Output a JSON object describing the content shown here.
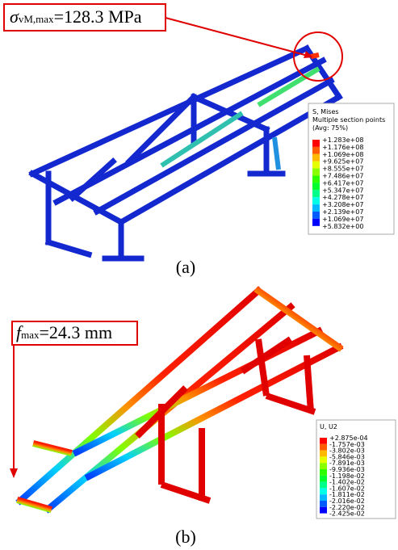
{
  "panel_a": {
    "annotation": {
      "symbol": "σ",
      "subscript": "vM,max",
      "text": "=128.3 MPa"
    },
    "legend": {
      "title_lines": [
        "S, Mises",
        "Multiple section points",
        "(Avg: 75%)"
      ],
      "labels": [
        "+1.283e+08",
        "+1.176e+08",
        "+1.069e+08",
        "+9.625e+07",
        "+8.555e+07",
        "+7.486e+07",
        "+6.417e+07",
        "+5.347e+07",
        "+4.278e+07",
        "+3.208e+07",
        "+2.139e+07",
        "+1.069e+07",
        "+5.832e+00"
      ]
    },
    "caption": "(a)"
  },
  "panel_b": {
    "annotation": {
      "symbol": "f",
      "subscript": "max",
      "text": "=24.3 mm"
    },
    "legend": {
      "title_lines": [
        "U, U2"
      ],
      "labels": [
        "+2.875e-04",
        "-1.757e-03",
        "-3.802e-03",
        "-5.846e-03",
        "-7.891e-03",
        "-9.936e-03",
        "-1.198e-02",
        "-1.402e-02",
        "-1.607e-02",
        "-1.811e-02",
        "-2.016e-02",
        "-2.220e-02",
        "-2.425e-02"
      ]
    },
    "caption": "(b)"
  }
}
